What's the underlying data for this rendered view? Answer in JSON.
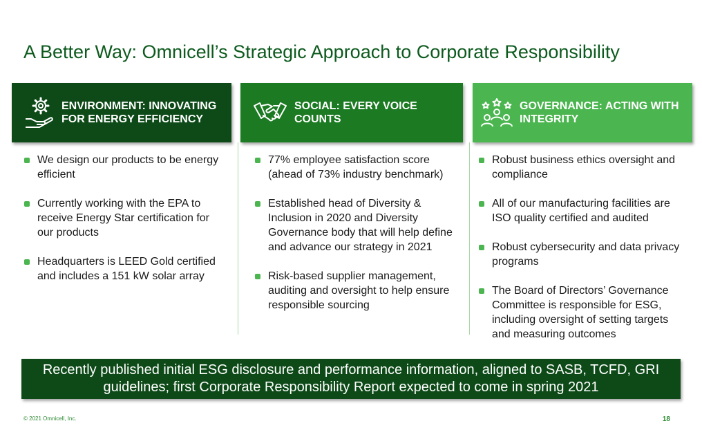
{
  "title": "A Better Way: Omnicell’s Strategic Approach to Corporate Responsibility",
  "columns": [
    {
      "header": "ENVIRONMENT: INNOVATING FOR ENERGY EFFICIENCY",
      "icon": "gear-hand-icon",
      "bullets": [
        "We design our products to be energy efficient",
        "Currently working with the EPA to receive Energy Star certification for our products",
        "Headquarters is LEED Gold certified and includes a 151 kW solar array"
      ]
    },
    {
      "header": "SOCIAL: EVERY VOICE COUNTS",
      "icon": "handshake-icon",
      "bullets": [
        "77% employee satisfaction score (ahead of 73% industry benchmark)",
        "Established head of Diversity & Inclusion in 2020 and Diversity Governance body that will help define and advance our strategy in 2021",
        "Risk-based supplier management, auditing and oversight to help ensure responsible sourcing"
      ]
    },
    {
      "header": "GOVERNANCE: ACTING WITH INTEGRITY",
      "icon": "people-stars-icon",
      "bullets": [
        "Robust business ethics oversight and compliance",
        "All of our manufacturing facilities are ISO quality certified and audited",
        "Robust cybersecurity and data privacy programs",
        "The Board of Directors’ Governance Committee is responsible for ESG, including oversight of setting targets and measuring outcomes"
      ]
    }
  ],
  "banner": "Recently published initial ESG disclosure and performance information, aligned to SASB, TCFD, GRI guidelines; first Corporate Responsibility Report expected to come in spring 2021",
  "footer": {
    "copyright": "© 2021 Omnicell, Inc.",
    "page": "18"
  },
  "colors": {
    "dark_green": "#0d4a18",
    "mid_green": "#1b7a22",
    "light_green": "#4bb54f"
  }
}
